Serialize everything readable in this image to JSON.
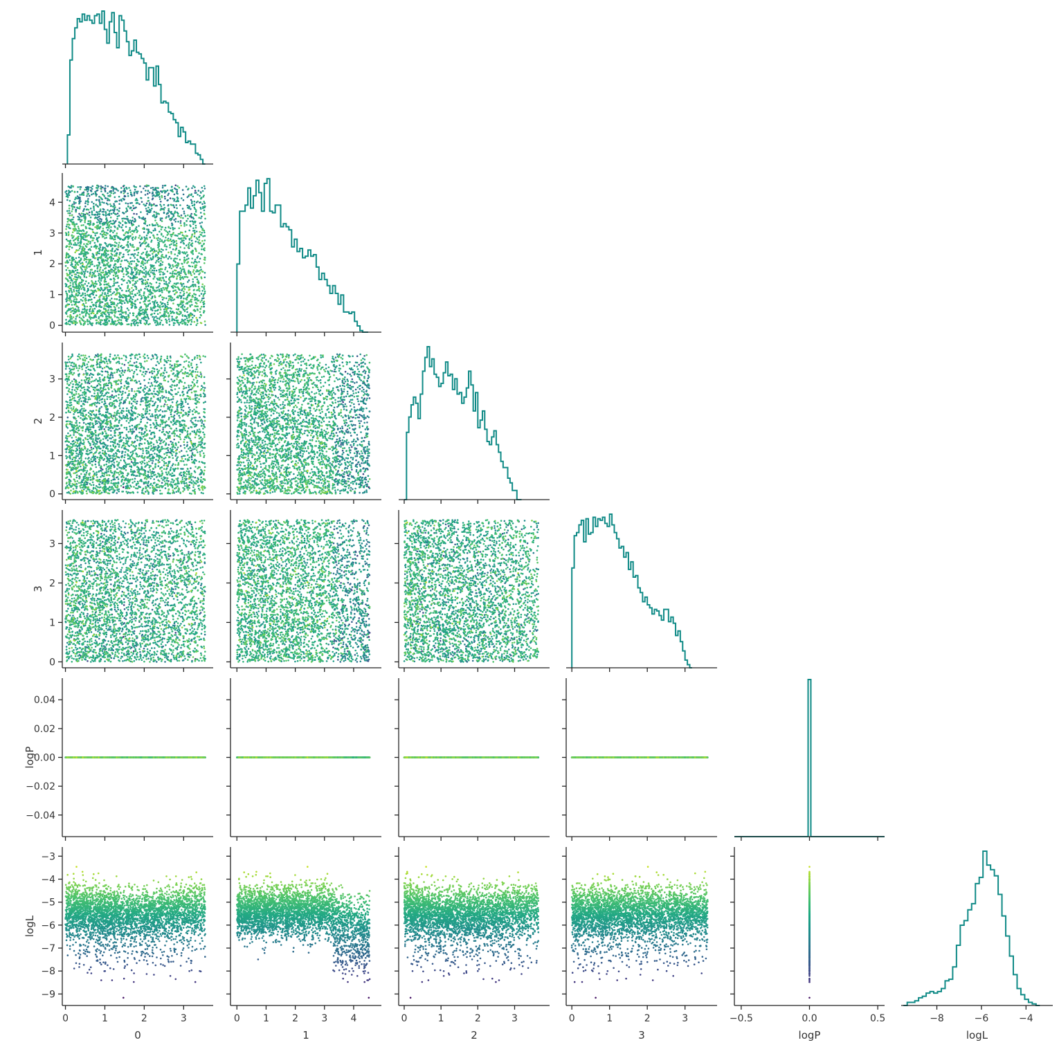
{
  "chart_data": {
    "type": "scatter",
    "layout": "corner-pair-plot",
    "title": "",
    "variables": [
      "0",
      "1",
      "2",
      "3",
      "logP",
      "logL"
    ],
    "axis_labels": [
      "0",
      "1",
      "2",
      "3",
      "logP",
      "logL"
    ],
    "ranges": {
      "0": [
        -0.08,
        3.75
      ],
      "1": [
        -0.22,
        4.95
      ],
      "2": [
        -0.15,
        3.95
      ],
      "3": [
        -0.15,
        3.85
      ],
      "logP": [
        -0.055,
        0.055
      ],
      "logL": [
        -9.5,
        -2.6
      ]
    },
    "ticks": {
      "0": [
        0,
        1,
        2,
        3
      ],
      "1": [
        0,
        1,
        2,
        3,
        4
      ],
      "2": [
        0,
        1,
        2,
        3
      ],
      "3": [
        0,
        1,
        2,
        3
      ],
      "logP": [
        -0.04,
        -0.02,
        0.0,
        0.02,
        0.04
      ],
      "logL": [
        -9,
        -8,
        -7,
        -6,
        -5,
        -4,
        -3
      ]
    },
    "tick_labels": {
      "0": [
        "0",
        "1",
        "2",
        "3"
      ],
      "1": [
        "0",
        "1",
        "2",
        "3",
        "4"
      ],
      "2": [
        "0",
        "1",
        "2",
        "3"
      ],
      "3": [
        "0",
        "1",
        "2",
        "3"
      ],
      "logP_y": [
        "−0.04",
        "−0.02",
        "0.00",
        "0.02",
        "0.04"
      ],
      "logP_x": [
        "−0.5",
        "0.0",
        "0.5"
      ],
      "logL_y": [
        "−9",
        "−8",
        "−7",
        "−6",
        "−5",
        "−4",
        "−3"
      ],
      "logL_x": [
        "−8",
        "−6",
        "−4"
      ]
    },
    "logP_x_axis": {
      "range": [
        -0.55,
        0.55
      ],
      "ticks": [
        -0.5,
        0.0,
        0.5
      ]
    },
    "logL_x_axis": {
      "range": [
        -9.6,
        -2.8
      ],
      "ticks": [
        -8,
        -6,
        -4
      ]
    },
    "diagonal_histograms": {
      "0": {
        "start": 0.05,
        "width": 0.0625,
        "heights": [
          0.19,
          0.68,
          0.82,
          0.89,
          0.95,
          0.93,
          0.98,
          0.94,
          0.97,
          0.94,
          0.92,
          0.97,
          0.98,
          0.92,
          1.0,
          0.88,
          0.79,
          0.93,
          0.99,
          0.86,
          0.76,
          0.97,
          0.94,
          0.87,
          0.8,
          0.71,
          0.74,
          0.81,
          0.73,
          0.72,
          0.69,
          0.66,
          0.55,
          0.63,
          0.63,
          0.51,
          0.64,
          0.52,
          0.4,
          0.41,
          0.4,
          0.34,
          0.33,
          0.29,
          0.27,
          0.18,
          0.24,
          0.21,
          0.14,
          0.15,
          0.13,
          0.13,
          0.07,
          0.06,
          0.03,
          0.0
        ]
      },
      "1": {
        "start": 0.0,
        "width": 0.0937,
        "heights": [
          0.44,
          0.78,
          0.78,
          0.82,
          0.93,
          0.8,
          0.88,
          0.98,
          0.9,
          0.78,
          0.96,
          0.99,
          0.78,
          0.77,
          0.82,
          0.82,
          0.68,
          0.7,
          0.68,
          0.66,
          0.55,
          0.6,
          0.52,
          0.54,
          0.48,
          0.49,
          0.53,
          0.49,
          0.5,
          0.42,
          0.34,
          0.38,
          0.34,
          0.3,
          0.25,
          0.3,
          0.25,
          0.18,
          0.24,
          0.13,
          0.13,
          0.12,
          0.13,
          0.07,
          0.04,
          0.01,
          0.0,
          0.0
        ]
      },
      "2": {
        "start": 0.0,
        "width": 0.0625,
        "heights": [
          0.0,
          0.44,
          0.54,
          0.62,
          0.67,
          0.63,
          0.53,
          0.69,
          0.84,
          0.93,
          1.0,
          0.87,
          0.92,
          0.82,
          0.8,
          0.74,
          0.76,
          0.83,
          0.9,
          0.81,
          0.82,
          0.72,
          0.79,
          0.69,
          0.7,
          0.63,
          0.67,
          0.73,
          0.84,
          0.75,
          0.58,
          0.7,
          0.47,
          0.52,
          0.58,
          0.46,
          0.38,
          0.36,
          0.41,
          0.45,
          0.36,
          0.31,
          0.25,
          0.21,
          0.21,
          0.14,
          0.11,
          0.06,
          0.06,
          0.0,
          0.0
        ]
      },
      "3": {
        "start": 0.0,
        "width": 0.0625,
        "heights": [
          0.65,
          0.86,
          0.88,
          0.93,
          0.96,
          0.82,
          0.97,
          0.87,
          0.88,
          0.98,
          0.92,
          0.97,
          0.96,
          0.98,
          0.94,
          0.92,
          1.0,
          0.93,
          0.88,
          0.84,
          0.78,
          0.79,
          0.72,
          0.75,
          0.64,
          0.69,
          0.59,
          0.6,
          0.52,
          0.49,
          0.43,
          0.46,
          0.41,
          0.39,
          0.35,
          0.38,
          0.37,
          0.34,
          0.31,
          0.38,
          0.38,
          0.3,
          0.33,
          0.29,
          0.21,
          0.24,
          0.17,
          0.11,
          0.05,
          0.02,
          0.0
        ]
      },
      "logP": {
        "bin_range": [
          -0.01,
          0.01
        ],
        "spike_height": 1.0
      },
      "logL": {
        "start": -9.5,
        "width": 0.17,
        "heights": [
          0.0,
          0.02,
          0.02,
          0.03,
          0.05,
          0.06,
          0.08,
          0.09,
          0.08,
          0.09,
          0.11,
          0.16,
          0.17,
          0.25,
          0.39,
          0.52,
          0.55,
          0.62,
          0.66,
          0.79,
          0.83,
          1.0,
          0.91,
          0.88,
          0.84,
          0.72,
          0.58,
          0.45,
          0.32,
          0.2,
          0.11,
          0.07,
          0.04,
          0.02,
          0.01,
          0.0
        ]
      }
    },
    "color_variable": "logL",
    "colormap": "viridis",
    "colors": {
      "histogram": "#0f8a86",
      "axes": "#222222"
    },
    "grid": false,
    "legend": "none",
    "sample_count": 5000
  }
}
